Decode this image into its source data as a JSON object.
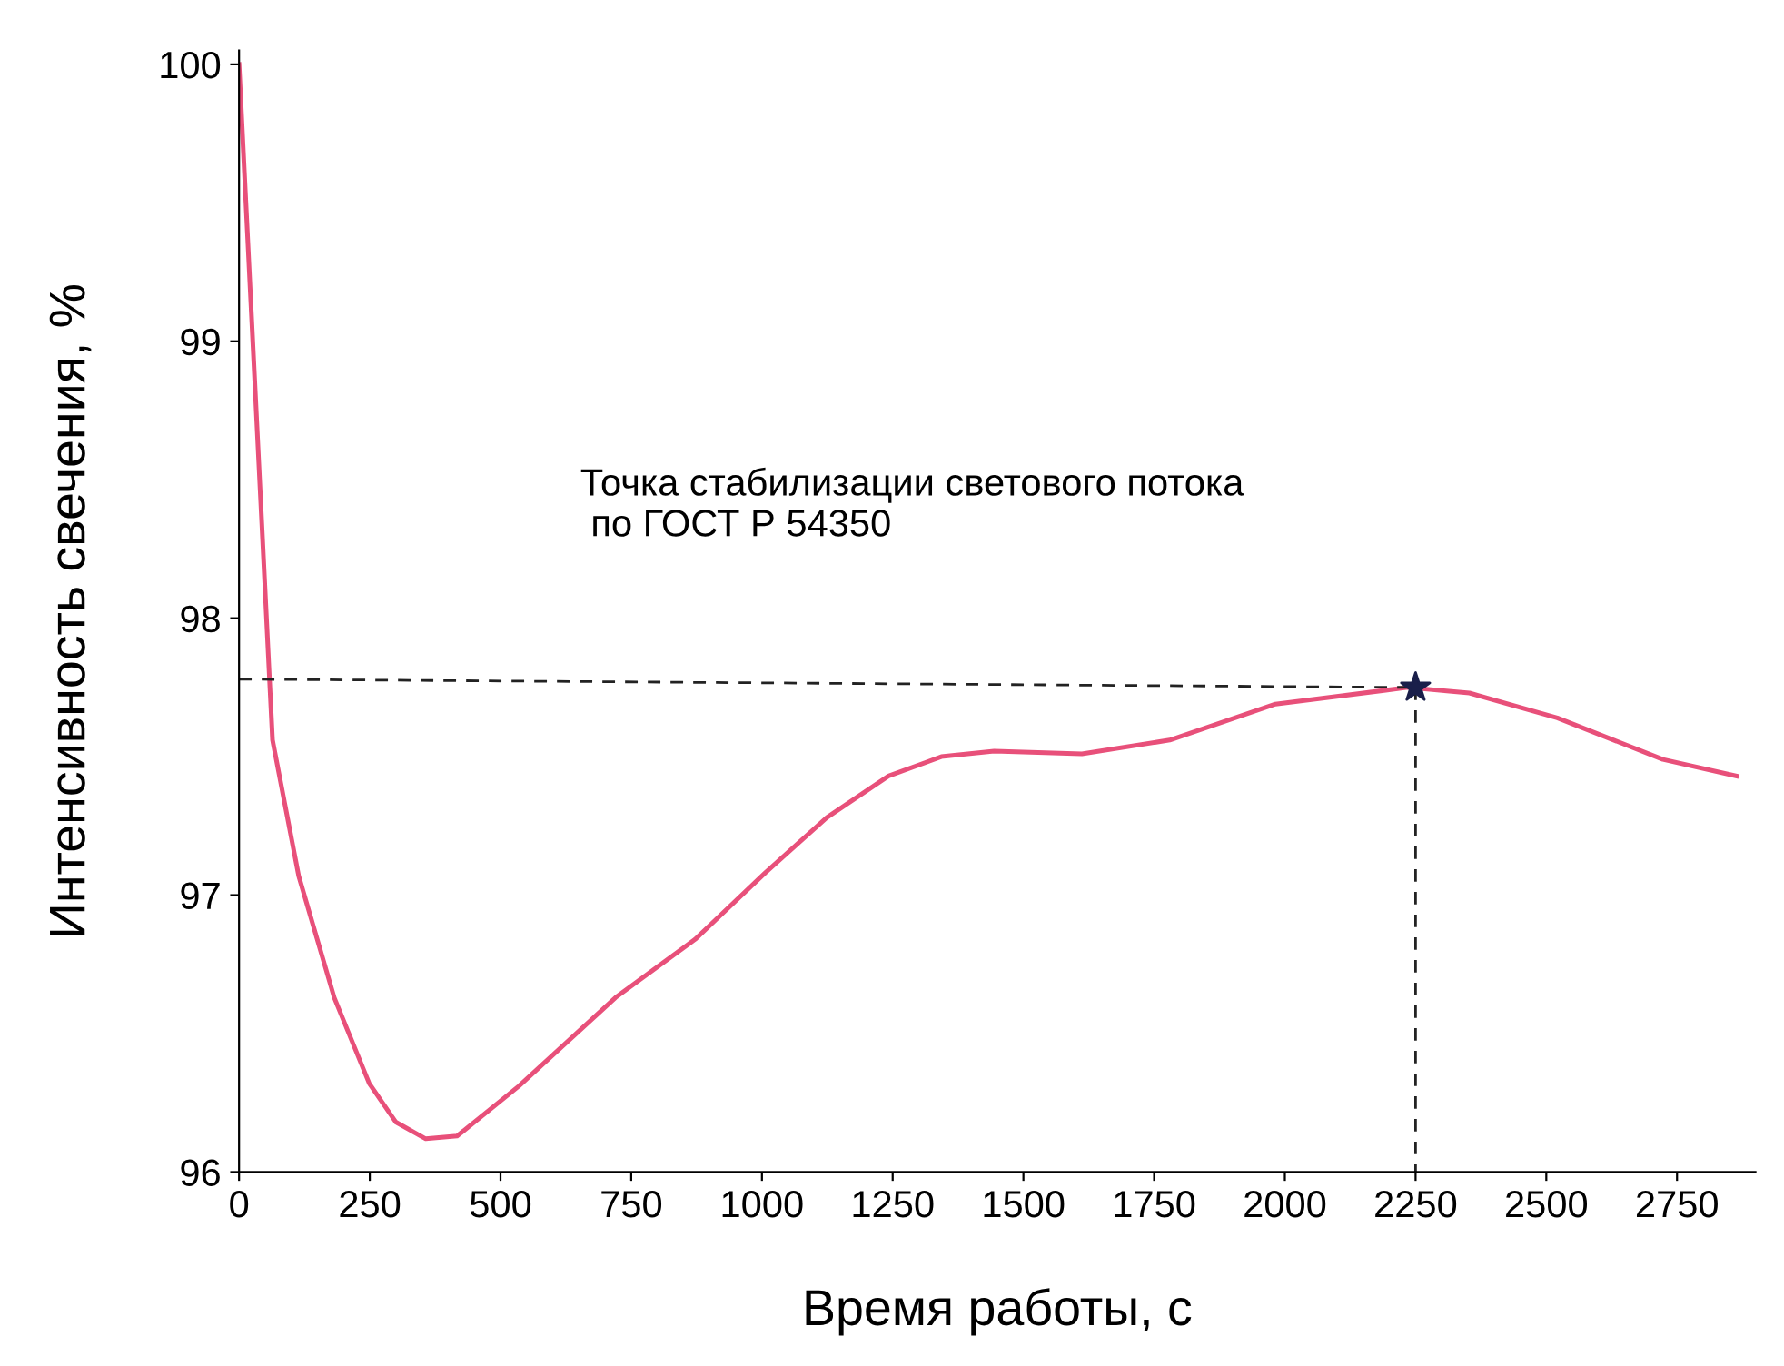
{
  "chart_data": {
    "type": "line",
    "xlabel": "Время работы, с",
    "ylabel": "Интенсивность свечения, %",
    "annotations": [
      "Точка стабилизации светового потока\n по ГОСТ Р 54350"
    ],
    "series": [
      {
        "color": "#e8507a",
        "x": [
          0,
          64,
          114,
          182,
          249,
          300,
          357,
          417,
          535,
          720,
          872,
          1006,
          1124,
          1242,
          1343,
          1444,
          1612,
          1780,
          1982,
          2235,
          2353,
          2521,
          2723,
          2864
        ],
        "values": [
          100,
          97.56,
          97.07,
          96.63,
          96.32,
          96.18,
          96.12,
          96.13,
          96.31,
          96.63,
          96.84,
          97.08,
          97.28,
          97.43,
          97.5,
          97.52,
          97.51,
          97.56,
          97.69,
          97.75,
          97.73,
          97.64,
          97.49,
          97.43
        ],
        "marker": "none",
        "line_style": "solid"
      },
      {
        "color": "#222222",
        "x": [
          0,
          2250
        ],
        "values": [
          97.78,
          97.75
        ],
        "marker": "none",
        "line_style": "dashed"
      },
      {
        "color": "#222222",
        "x": [
          2250,
          2250
        ],
        "values": [
          97.75,
          96
        ],
        "marker": "none",
        "line_style": "dashed"
      },
      {
        "type": "scatter",
        "color": "#1a1f4a",
        "x": [
          2250
        ],
        "values": [
          97.75
        ],
        "marker": "star"
      }
    ],
    "xlim": [
      0,
      2900
    ],
    "ylim": [
      96,
      100.05
    ],
    "xticks": [
      0,
      250,
      500,
      750,
      1000,
      1250,
      1500,
      1750,
      2000,
      2250,
      2500,
      2750
    ],
    "yticks": [
      96,
      97,
      98,
      99,
      100
    ],
    "grid": false,
    "legend": false
  }
}
